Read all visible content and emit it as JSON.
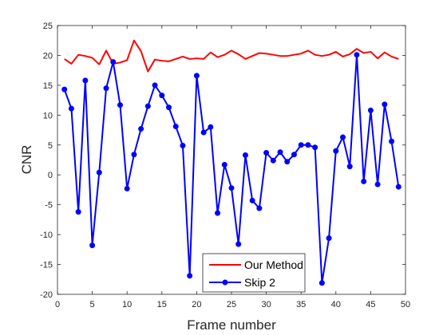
{
  "chart_data": {
    "type": "line",
    "xlabel": "Frame number",
    "ylabel": "CNR",
    "xlim": [
      0,
      50
    ],
    "ylim": [
      -20,
      25
    ],
    "xticks": [
      0,
      5,
      10,
      15,
      20,
      25,
      30,
      35,
      40,
      45,
      50
    ],
    "yticks": [
      -20,
      -15,
      -10,
      -5,
      0,
      5,
      10,
      15,
      20,
      25
    ],
    "grid": false,
    "legend_position": "bottom-center",
    "x": [
      1,
      2,
      3,
      4,
      5,
      6,
      7,
      8,
      9,
      10,
      11,
      12,
      13,
      14,
      15,
      16,
      17,
      18,
      19,
      20,
      21,
      22,
      23,
      24,
      25,
      26,
      27,
      28,
      29,
      30,
      31,
      32,
      33,
      34,
      35,
      36,
      37,
      38,
      39,
      40,
      41,
      42,
      43,
      44,
      45,
      46,
      47,
      48,
      49
    ],
    "series": [
      {
        "name": "Our Method",
        "color": "#ff0000",
        "marker": "none",
        "values": [
          19.4,
          18.6,
          20.1,
          19.9,
          19.6,
          18.5,
          20.8,
          18.6,
          18.8,
          19.2,
          22.5,
          20.7,
          17.3,
          19.3,
          19.1,
          19.0,
          19.4,
          19.8,
          19.4,
          19.5,
          19.4,
          20.5,
          19.7,
          20.1,
          20.8,
          20.2,
          19.4,
          19.9,
          20.4,
          20.3,
          20.1,
          19.9,
          19.9,
          20.1,
          20.3,
          20.8,
          20.1,
          19.9,
          20.1,
          20.6,
          19.8,
          20.2,
          21.1,
          20.4,
          20.6,
          19.5,
          20.5,
          19.8,
          19.4
        ]
      },
      {
        "name": "Skip 2",
        "color": "#0000ff",
        "marker": "circle",
        "values": [
          14.3,
          11.1,
          -6.2,
          15.8,
          -11.8,
          0.4,
          14.5,
          18.9,
          11.7,
          -2.3,
          3.4,
          7.7,
          11.5,
          15.0,
          13.3,
          11.3,
          8.1,
          4.9,
          -16.9,
          16.6,
          7.1,
          8.0,
          -6.4,
          1.7,
          -2.2,
          -11.6,
          3.3,
          -4.3,
          -5.6,
          3.7,
          2.4,
          3.8,
          2.2,
          3.4,
          5.0,
          5.0,
          4.6,
          -18.1,
          -10.6,
          4.0,
          6.3,
          1.4,
          20.1,
          -1.1,
          10.8,
          -1.6,
          11.8,
          5.6,
          -2.0
        ]
      }
    ]
  }
}
